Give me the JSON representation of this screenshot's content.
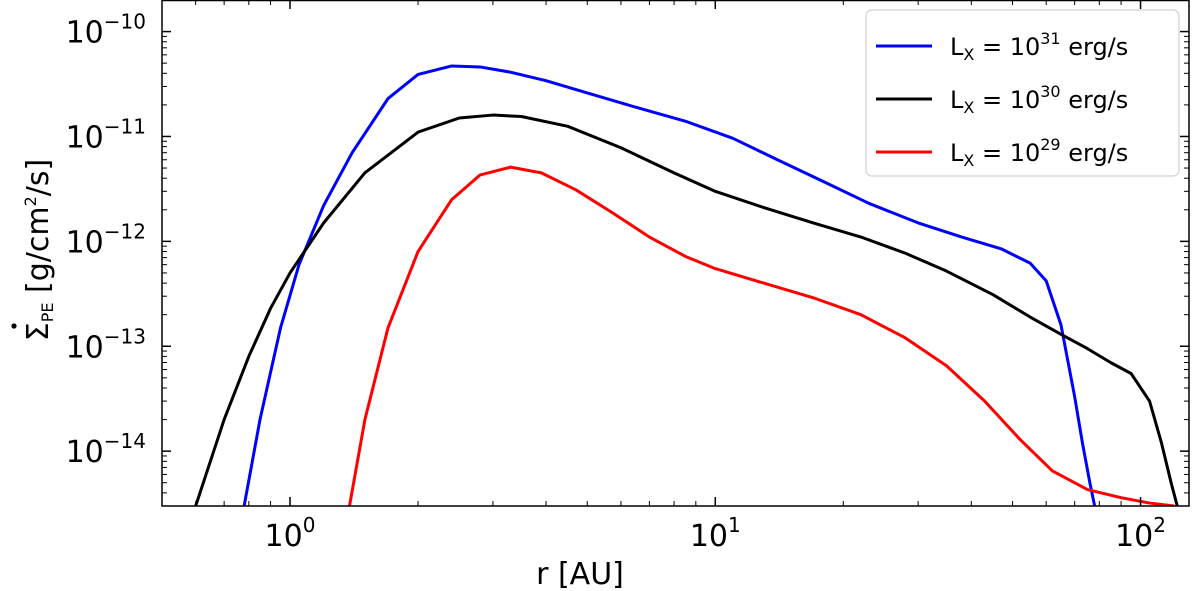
{
  "chart_data": {
    "type": "line",
    "xlabel": "r [AU]",
    "ylabel_parts": {
      "main": "Σ",
      "sub": "PE",
      "unit": "[g/cm",
      "unit_sup": "2",
      "unit_end": "/s]"
    },
    "xscale": "log",
    "yscale": "log",
    "xlim": [
      0.5,
      130
    ],
    "ylim": [
      3e-15,
      2e-10
    ],
    "x_ticks": [
      {
        "base": "10",
        "exp": "0",
        "value": 1
      },
      {
        "base": "10",
        "exp": "1",
        "value": 10
      },
      {
        "base": "10",
        "exp": "2",
        "value": 100
      }
    ],
    "y_ticks": [
      {
        "base": "10",
        "exp": "−10",
        "value": 1e-10
      },
      {
        "base": "10",
        "exp": "−11",
        "value": 1e-11
      },
      {
        "base": "10",
        "exp": "−12",
        "value": 1e-12
      },
      {
        "base": "10",
        "exp": "−13",
        "value": 1e-13
      },
      {
        "base": "10",
        "exp": "−14",
        "value": 1e-14
      }
    ],
    "legend_position": "top-right",
    "series": [
      {
        "name": "L_X = 10^31 erg/s",
        "legend": {
          "pre": "L",
          "sub": "X",
          "mid": " = 10",
          "sup": "31",
          "post": " erg/s"
        },
        "color": "#0000ff",
        "x": [
          0.78,
          0.85,
          0.95,
          1.05,
          1.2,
          1.4,
          1.7,
          2.0,
          2.4,
          2.8,
          3.3,
          4.0,
          5.0,
          6.5,
          8.5,
          11,
          14,
          18,
          23,
          30,
          38,
          47,
          55,
          60,
          65,
          70,
          73,
          76,
          78
        ],
        "y": [
          3e-15,
          2e-14,
          1.5e-13,
          6e-13,
          2.2e-12,
          7e-12,
          2.3e-11,
          3.9e-11,
          4.7e-11,
          4.6e-11,
          4.1e-11,
          3.4e-11,
          2.6e-11,
          1.9e-11,
          1.4e-11,
          9.6e-12,
          6e-12,
          3.7e-12,
          2.3e-12,
          1.5e-12,
          1.1e-12,
          8.5e-13,
          6.2e-13,
          4.2e-13,
          1.6e-13,
          3.3e-14,
          1.2e-14,
          5e-15,
          3e-15
        ]
      },
      {
        "name": "L_X = 10^30 erg/s",
        "legend": {
          "pre": "L",
          "sub": "X",
          "mid": " = 10",
          "sup": "30",
          "post": " erg/s"
        },
        "color": "#000000",
        "x": [
          0.6,
          0.7,
          0.8,
          0.9,
          1.0,
          1.2,
          1.5,
          2.0,
          2.5,
          3.0,
          3.5,
          4.5,
          6.0,
          8.0,
          10,
          13,
          17,
          22,
          28,
          35,
          45,
          55,
          65,
          75,
          85,
          95,
          105,
          112,
          118,
          122
        ],
        "y": [
          3e-15,
          2e-14,
          8e-14,
          2.3e-13,
          5e-13,
          1.5e-12,
          4.5e-12,
          1.1e-11,
          1.5e-11,
          1.6e-11,
          1.55e-11,
          1.25e-11,
          7.8e-12,
          4.5e-12,
          3e-12,
          2.1e-12,
          1.5e-12,
          1.1e-12,
          7.7e-13,
          5.2e-13,
          3.1e-13,
          1.9e-13,
          1.3e-13,
          9.5e-14,
          7e-14,
          5.5e-14,
          3e-14,
          1.2e-14,
          5e-15,
          3e-15
        ]
      },
      {
        "name": "L_X = 10^29 erg/s",
        "legend": {
          "pre": "L",
          "sub": "X",
          "mid": " = 10",
          "sup": "29",
          "post": " erg/s"
        },
        "color": "#ff0000",
        "x": [
          1.38,
          1.5,
          1.7,
          2.0,
          2.4,
          2.8,
          3.3,
          3.9,
          4.7,
          5.7,
          7.0,
          8.5,
          10,
          13,
          17,
          22,
          28,
          35,
          43,
          52,
          62,
          75,
          90,
          105,
          120
        ],
        "y": [
          3e-15,
          2e-14,
          1.5e-13,
          8e-13,
          2.5e-12,
          4.3e-12,
          5.1e-12,
          4.5e-12,
          3.1e-12,
          1.9e-12,
          1.1e-12,
          7.2e-13,
          5.5e-13,
          4e-13,
          2.9e-13,
          2e-13,
          1.2e-13,
          6.5e-14,
          3e-14,
          1.3e-14,
          6.5e-15,
          4.3e-15,
          3.6e-15,
          3.2e-15,
          3e-15
        ]
      }
    ]
  }
}
